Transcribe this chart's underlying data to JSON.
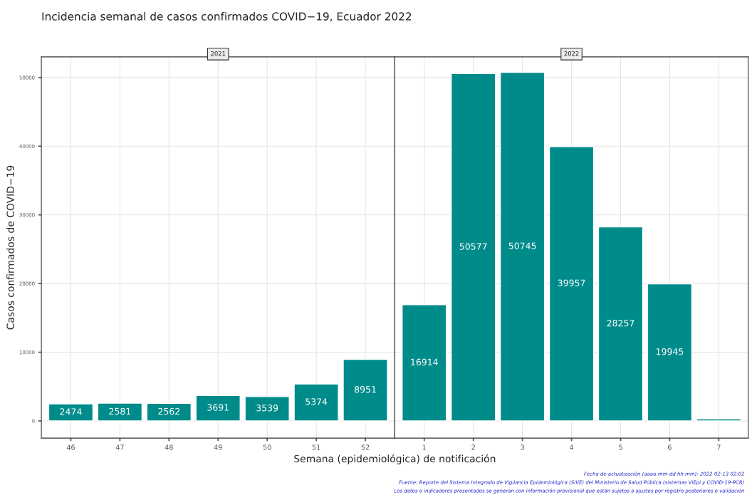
{
  "chart_data": [
    {
      "type": "bar",
      "title": "Incidencia semanal de casos confirmados COVID−19, Ecuador 2022",
      "subtitle": "2021",
      "ylabel": "Casos confirmados de COVID−19",
      "xlabel": "Semana (epidemiológica) de notificación",
      "categories": [
        "46",
        "47",
        "48",
        "49",
        "50",
        "51",
        "52"
      ],
      "values": [
        2474,
        2581,
        2562,
        3691,
        3539,
        5374,
        8951
      ],
      "color": "#008b8b",
      "ylim": [
        -2500,
        53000
      ],
      "yticks": [
        0,
        10000,
        20000,
        30000,
        40000,
        50000
      ],
      "grid": true,
      "data_labels": true
    },
    {
      "type": "bar",
      "subtitle": "2022",
      "categories": [
        "1",
        "2",
        "3",
        "4",
        "5",
        "6",
        "7"
      ],
      "values": [
        16914,
        50577,
        50745,
        39957,
        28257,
        19945,
        300
      ],
      "color": "#008b8b",
      "value_labels": [
        "16914",
        "50577",
        "50745",
        "39957",
        "28257",
        "19945",
        null
      ],
      "ylim": [
        -2500,
        53000
      ],
      "yticks": [
        0,
        10000,
        20000,
        30000,
        40000,
        50000
      ],
      "grid": true,
      "tick_labels": "x",
      "annotations": [
        "Fecha de actualización (aaaa-mm-dd hh:mm): 2022-02-13 02:02",
        "Fuente: Reporte del Sistema Integrado de Vigilancia Epidemiológica (SIVE) del Ministerio de Salud Pública (sistemas ViEpi y COVID-19-PCR)",
        "Los datos o indicadores presentados se generan con información provisional que están sujetos a ajustes por registro posteriores o validación"
      ]
    }
  ]
}
